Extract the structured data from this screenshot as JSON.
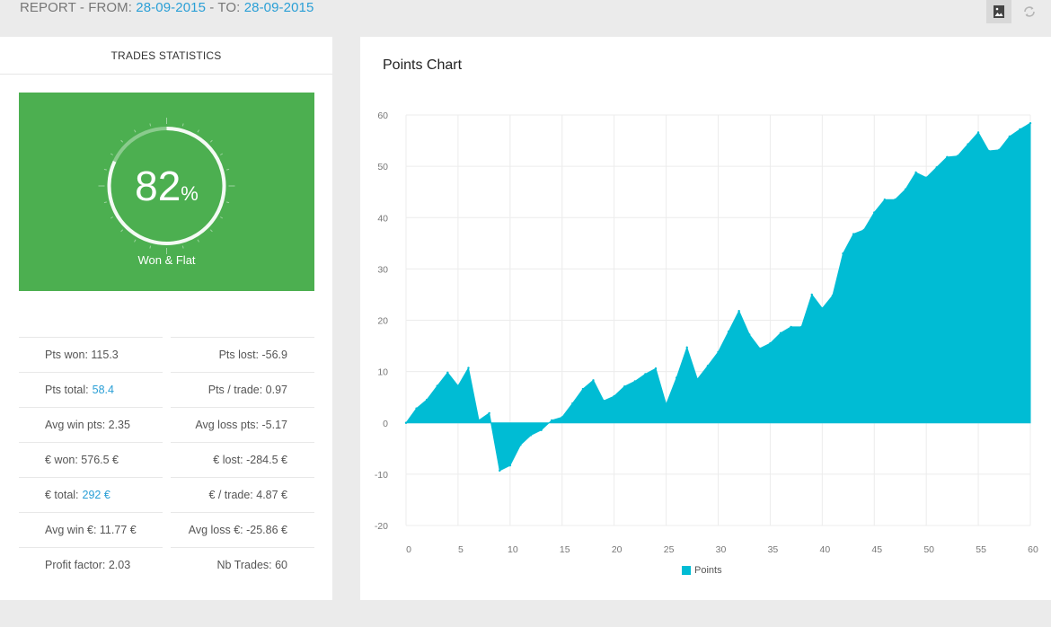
{
  "header": {
    "prefix": "REPORT - FROM: ",
    "from_date": "28-09-2015",
    "separator": " - TO: ",
    "to_date": "28-09-2015",
    "icons": [
      "image-icon",
      "refresh-icon"
    ]
  },
  "stats_panel": {
    "title": "TRADES STATISTICS",
    "gauge": {
      "value": "82",
      "unit": "%",
      "label": "Won & Flat",
      "fraction": 0.82,
      "color": "#4caf50"
    },
    "rows": [
      {
        "left": {
          "label": "Pts won: 115.3"
        },
        "right": {
          "label": "Pts lost: -56.9"
        }
      },
      {
        "left": {
          "label": "Pts total:",
          "value": "58.4"
        },
        "right": {
          "label": "Pts / trade: 0.97"
        }
      },
      {
        "left": {
          "label": "Avg win pts: 2.35"
        },
        "right": {
          "label": "Avg loss pts: -5.17"
        }
      },
      {
        "left": {
          "label": "€ won: 576.5 €"
        },
        "right": {
          "label": "€ lost: -284.5 €"
        }
      },
      {
        "left": {
          "label": "€ total:",
          "value": "292 €"
        },
        "right": {
          "label": "€ / trade: 4.87 €"
        }
      },
      {
        "left": {
          "label": "Avg win €: 11.77 €"
        },
        "right": {
          "label": "Avg loss €: -25.86 €"
        }
      },
      {
        "left": {
          "label": "Profit factor: 2.03"
        },
        "right": {
          "label": "Nb Trades: 60"
        }
      }
    ],
    "accent_color": "#2a9fd6"
  },
  "chart_data": {
    "type": "area",
    "title": "Points Chart",
    "xlabel": "",
    "ylabel": "",
    "xlim": [
      0,
      60
    ],
    "ylim": [
      -20,
      60
    ],
    "x_ticks": [
      0,
      5,
      10,
      15,
      20,
      25,
      30,
      35,
      40,
      45,
      50,
      55,
      60
    ],
    "y_ticks": [
      60,
      50,
      40,
      30,
      20,
      10,
      0,
      -10,
      -20
    ],
    "grid": true,
    "legend": "bottom",
    "series": [
      {
        "name": "Points",
        "color": "#00bcd4",
        "x": [
          0,
          1,
          2,
          3,
          4,
          5,
          6,
          7,
          8,
          9,
          10,
          11,
          12,
          13,
          14,
          15,
          16,
          17,
          18,
          19,
          20,
          21,
          22,
          23,
          24,
          25,
          26,
          27,
          28,
          29,
          30,
          31,
          32,
          33,
          34,
          35,
          36,
          37,
          38,
          39,
          40,
          41,
          42,
          43,
          44,
          45,
          46,
          47,
          48,
          49,
          50,
          51,
          52,
          53,
          54,
          55,
          56,
          57,
          58,
          59,
          60
        ],
        "values": [
          0,
          2.8,
          4.5,
          7.2,
          9.8,
          7.2,
          10.7,
          0.5,
          1.9,
          -9.3,
          -8.3,
          -4.3,
          -2.4,
          -1.4,
          0.5,
          1.1,
          3.8,
          6.6,
          8.3,
          4.3,
          5.2,
          7.1,
          8.1,
          9.5,
          10.6,
          3.6,
          8.8,
          14.7,
          8.5,
          11.1,
          13.8,
          17.8,
          21.8,
          17.2,
          14.5,
          15.5,
          17.5,
          18.7,
          18.7,
          25.0,
          22.3,
          24.8,
          33.0,
          36.8,
          37.6,
          41.0,
          43.5,
          43.5,
          45.5,
          48.8,
          47.8,
          49.8,
          51.8,
          52.0,
          54.3,
          56.6,
          53.0,
          53.2,
          55.8,
          57.2,
          58.4
        ]
      }
    ]
  }
}
